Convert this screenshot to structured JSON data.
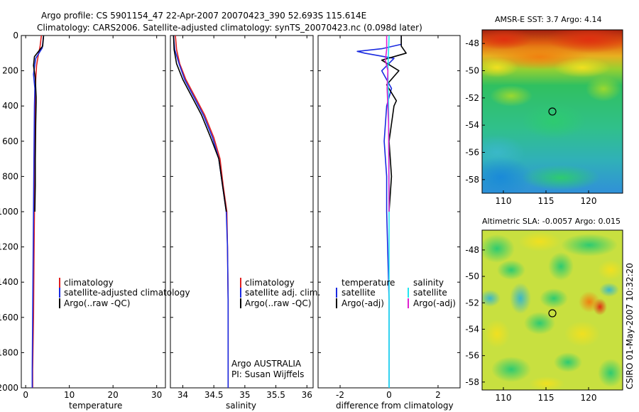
{
  "header": {
    "line1": "Argo profile: CS 5901154_47 22-Apr-2007 20070423_390 52.693S 115.614E",
    "line2": "Climatology: CARS2006. Satellite-adjusted climatology: synTS_20070423.nc (0.098d later)"
  },
  "colors": {
    "climatology": "#e02020",
    "satellite": "#1a2ae0",
    "argo": "#000000",
    "sat_salinity": "#22e6f0",
    "argo_salinity": "#e020d0"
  },
  "side_label": "CSIRO 01-May-2007 10:32:20",
  "chart_data": [
    {
      "type": "line",
      "name": "temperature-profile",
      "xlabel": "temperature",
      "xlim": [
        -1,
        32
      ],
      "ylim": [
        2000,
        0
      ],
      "xticks": [
        0,
        10,
        20,
        30
      ],
      "yticks": [
        0,
        200,
        400,
        600,
        800,
        1000,
        1200,
        1400,
        1600,
        1800,
        2000
      ],
      "legend": [
        "climatology",
        "satellite-adjusted climatology",
        "Argo(..raw -QC)"
      ],
      "series": [
        {
          "name": "climatology",
          "color": "#e02020",
          "x": [
            3.6,
            3.3,
            2.9,
            2.5,
            2.3,
            2.2,
            2.1,
            2.0,
            1.9,
            1.8,
            1.6,
            1.6
          ],
          "y": [
            0,
            60,
            110,
            170,
            250,
            400,
            700,
            1000,
            1300,
            1600,
            1900,
            2000
          ]
        },
        {
          "name": "satellite",
          "color": "#1a2ae0",
          "x": [
            4.1,
            3.8,
            2.3,
            2.0,
            1.8,
            2.1,
            2.0,
            1.9,
            1.8,
            1.7,
            1.6,
            1.5,
            1.5
          ],
          "y": [
            0,
            70,
            130,
            180,
            220,
            300,
            400,
            700,
            1000,
            1300,
            1600,
            1900,
            2000
          ]
        },
        {
          "name": "argo",
          "color": "#000000",
          "x": [
            4.1,
            3.9,
            2.0,
            1.8,
            2.2,
            2.4,
            2.4,
            2.3,
            2.2,
            2.2,
            2.1
          ],
          "y": [
            0,
            60,
            120,
            170,
            240,
            350,
            380,
            500,
            700,
            850,
            1000
          ]
        }
      ]
    },
    {
      "type": "line",
      "name": "salinity-profile",
      "xlabel": "salinity",
      "xlim": [
        33.8,
        36.1
      ],
      "ylim": [
        2000,
        0
      ],
      "xticks": [
        34,
        34.5,
        35,
        35.5,
        36
      ],
      "legend": [
        "climatology",
        "satellite adj. clim.",
        "Argo(..raw -QC)"
      ],
      "annotation": [
        "Argo AUSTRALIA",
        "PI: Susan Wijffels"
      ],
      "series": [
        {
          "name": "climatology",
          "color": "#e02020",
          "x": [
            33.88,
            33.9,
            33.95,
            34.05,
            34.2,
            34.35,
            34.5,
            34.6,
            34.65,
            34.71,
            34.72,
            34.73,
            34.73
          ],
          "y": [
            0,
            80,
            160,
            250,
            350,
            450,
            580,
            700,
            850,
            1000,
            1200,
            1500,
            2000
          ]
        },
        {
          "name": "satellite",
          "color": "#1a2ae0",
          "x": [
            33.85,
            33.87,
            33.94,
            34.03,
            34.18,
            34.33,
            34.48,
            34.58,
            34.64,
            34.7,
            34.72,
            34.73,
            34.73
          ],
          "y": [
            0,
            80,
            160,
            250,
            350,
            450,
            580,
            700,
            850,
            1000,
            1200,
            1500,
            2000
          ]
        },
        {
          "name": "argo",
          "color": "#000000",
          "x": [
            33.85,
            33.86,
            33.9,
            34.0,
            34.15,
            34.3,
            34.45,
            34.58,
            34.64,
            34.7
          ],
          "y": [
            0,
            80,
            160,
            250,
            350,
            450,
            580,
            700,
            850,
            1000
          ]
        }
      ]
    },
    {
      "type": "line",
      "name": "difference-profile",
      "xlabel": "difference from climatology",
      "xlim": [
        -2.9,
        2.9
      ],
      "ylim": [
        2000,
        0
      ],
      "xticks": [
        -2,
        0,
        2
      ],
      "legend_temperature": [
        "temperature",
        "satellite",
        "Argo(-adj)"
      ],
      "legend_salinity": [
        "salinity",
        "satellite",
        "Argo(-adj)"
      ],
      "series": [
        {
          "name": "temp-satellite",
          "color": "#1a2ae0",
          "x": [
            0.5,
            0.5,
            -0.3,
            -1.3,
            -1.0,
            0.2,
            -0.3,
            0.1,
            -0.1,
            -0.2,
            -0.1,
            -0.1,
            0.0,
            0.0
          ],
          "y": [
            0,
            50,
            75,
            90,
            100,
            130,
            200,
            300,
            400,
            600,
            800,
            1000,
            1500,
            2000
          ]
        },
        {
          "name": "temp-argo",
          "color": "#000000",
          "x": [
            0.5,
            0.5,
            0.7,
            -0.3,
            0.4,
            -0.1,
            0.3,
            0.2,
            0.0,
            0.1,
            0.0
          ],
          "y": [
            0,
            60,
            100,
            140,
            200,
            280,
            370,
            400,
            600,
            800,
            1000
          ]
        },
        {
          "name": "sal-satellite",
          "color": "#22e6f0",
          "x": [
            0.0,
            -0.05,
            -0.02,
            0.0,
            0.0,
            0.0
          ],
          "y": [
            0,
            200,
            400,
            800,
            1200,
            2000
          ]
        },
        {
          "name": "sal-argo",
          "color": "#e020d0",
          "x": [
            -0.1,
            -0.1,
            -0.15,
            -0.05,
            -0.08,
            -0.02,
            0.0
          ],
          "y": [
            0,
            80,
            140,
            200,
            300,
            500,
            1000
          ]
        }
      ]
    },
    {
      "type": "heatmap",
      "name": "amsre-sst-map",
      "title": "AMSR-E SST: 3.7 Argo: 4.14",
      "xticks": [
        110,
        115,
        120
      ],
      "yticks": [
        -48,
        -50,
        -52,
        -54,
        -56,
        -58
      ],
      "xlim": [
        107.5,
        124
      ],
      "ylim": [
        -47,
        -59
      ],
      "marker": {
        "lon": 115.6,
        "lat": -52.7
      }
    },
    {
      "type": "heatmap",
      "name": "altimetric-sla-map",
      "title": "Altimetric SLA: -0.0057 Argo: 0.015",
      "xticks": [
        110,
        115,
        120
      ],
      "yticks": [
        -48,
        -50,
        -52,
        -54,
        -56,
        -58
      ],
      "xlim": [
        107.5,
        124
      ],
      "ylim": [
        -46.5,
        -58.6
      ],
      "marker": {
        "lon": 115.6,
        "lat": -52.7
      }
    }
  ]
}
